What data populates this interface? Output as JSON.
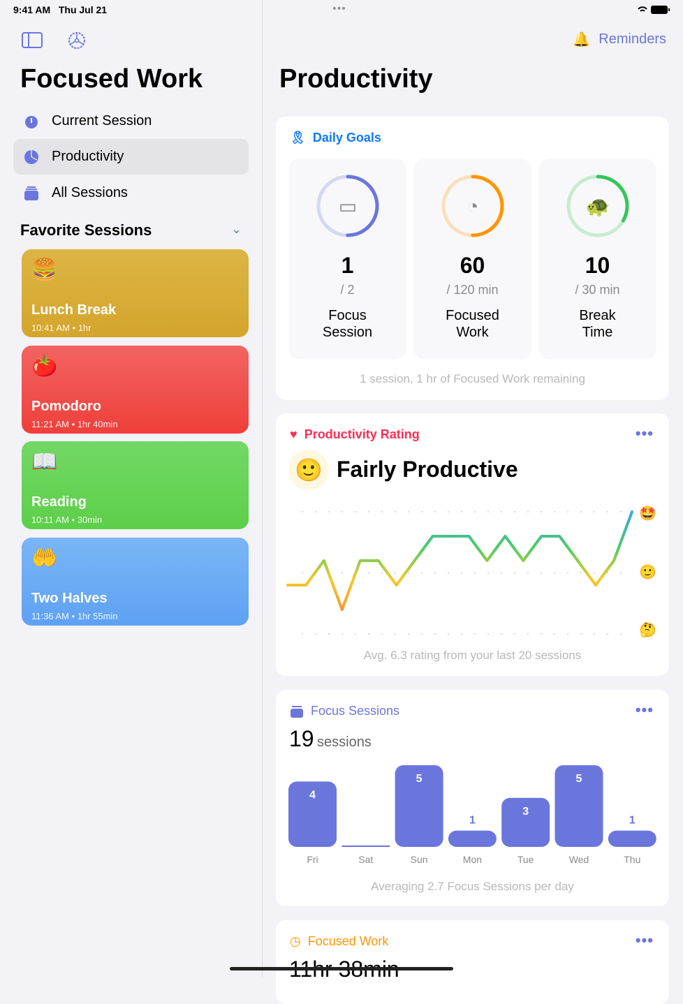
{
  "status": {
    "time": "9:41 AM",
    "date": "Thu Jul 21"
  },
  "sidebar": {
    "title": "Focused Work",
    "items": [
      {
        "label": "Current Session",
        "icon": "timer-icon"
      },
      {
        "label": "Productivity",
        "icon": "chart-pie-icon",
        "selected": true
      },
      {
        "label": "All Sessions",
        "icon": "stack-icon"
      }
    ],
    "favorites_title": "Favorite Sessions",
    "favorites": [
      {
        "emoji": "🍔",
        "name": "Lunch Break",
        "time": "10:41 AM • 1hr",
        "color": "#d9ac36"
      },
      {
        "emoji": "🍅",
        "name": "Pomodoro",
        "time": "11:21 AM • 1hr 40min",
        "color": "#f04f4a"
      },
      {
        "emoji": "📖",
        "name": "Reading",
        "time": "10:11 AM • 30min",
        "color": "#65d254"
      },
      {
        "emoji": "🤲",
        "name": "Two Halves",
        "time": "11:36 AM • 1hr 55min",
        "color": "#6aaaf5"
      }
    ]
  },
  "main": {
    "reminders": "Reminders",
    "title": "Productivity",
    "goals": {
      "title": "Daily Goals",
      "items": [
        {
          "value": "1",
          "of": "/ 2",
          "label1": "Focus",
          "label2": "Session",
          "progress": 0.5,
          "color": "#6b76dc"
        },
        {
          "value": "60",
          "of": "/ 120 min",
          "label1": "Focused",
          "label2": "Work",
          "progress": 0.5,
          "color": "#ff9500"
        },
        {
          "value": "10",
          "of": "/ 30 min",
          "label1": "Break",
          "label2": "Time",
          "progress": 0.333,
          "color": "#34c759"
        }
      ],
      "footer": "1 session, 1 hr of Focused Work remaining"
    },
    "rating": {
      "title": "Productivity Rating",
      "emoji": "🙂",
      "label": "Fairly Productive",
      "footer": "Avg. 6.3 rating from your last 20 sessions",
      "axis_emojis": [
        "🤩",
        "🙂",
        "🤔"
      ]
    },
    "sessions": {
      "title": "Focus Sessions",
      "count": "19",
      "unit": "sessions",
      "footer": "Averaging 2.7 Focus Sessions per day"
    },
    "focused": {
      "title": "Focused Work",
      "value": "11hr 38min"
    }
  },
  "chart_data": [
    {
      "type": "line",
      "title": "Productivity Rating",
      "ylim": [
        0,
        10
      ],
      "values": [
        4,
        4,
        6,
        2,
        6,
        6,
        4,
        6,
        8,
        8,
        8,
        6,
        8,
        6,
        8,
        8,
        6,
        4,
        6,
        10
      ],
      "grid": true
    },
    {
      "type": "bar",
      "categories": [
        "Fri",
        "Sat",
        "Sun",
        "Mon",
        "Tue",
        "Wed",
        "Thu"
      ],
      "values": [
        4,
        0,
        5,
        1,
        3,
        5,
        1
      ],
      "color": "#6b76dc"
    }
  ]
}
